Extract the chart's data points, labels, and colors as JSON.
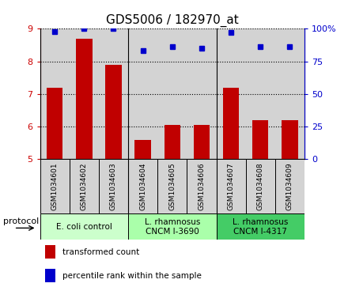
{
  "title": "GDS5006 / 182970_at",
  "samples": [
    "GSM1034601",
    "GSM1034602",
    "GSM1034603",
    "GSM1034604",
    "GSM1034605",
    "GSM1034606",
    "GSM1034607",
    "GSM1034608",
    "GSM1034609"
  ],
  "transformed_count": [
    7.2,
    8.7,
    7.9,
    5.6,
    6.05,
    6.05,
    7.2,
    6.2,
    6.2
  ],
  "percentile_rank": [
    98,
    100,
    100,
    83,
    86,
    85,
    97,
    86,
    86
  ],
  "ylim_left": [
    5,
    9
  ],
  "ylim_right": [
    0,
    100
  ],
  "yticks_left": [
    5,
    6,
    7,
    8,
    9
  ],
  "yticks_right": [
    0,
    25,
    50,
    75,
    100
  ],
  "ytick_right_labels": [
    "0",
    "25",
    "50",
    "75",
    "100%"
  ],
  "bar_color": "#C00000",
  "dot_color": "#0000CC",
  "title_fontsize": 11,
  "left_tick_color": "#CC0000",
  "right_tick_color": "#0000CC",
  "sample_box_color": "#D3D3D3",
  "protocols": [
    {
      "label": "E. coli control",
      "start": 0,
      "end": 3,
      "color": "#CCFFCC"
    },
    {
      "label": "L. rhamnosus\nCNCM I-3690",
      "start": 3,
      "end": 6,
      "color": "#AAFFAA"
    },
    {
      "label": "L. rhamnosus\nCNCM I-4317",
      "start": 6,
      "end": 9,
      "color": "#44CC66"
    }
  ],
  "group_dividers": [
    2.5,
    5.5
  ],
  "legend_bar_label": "transformed count",
  "legend_dot_label": "percentile rank within the sample",
  "protocol_label": "protocol"
}
